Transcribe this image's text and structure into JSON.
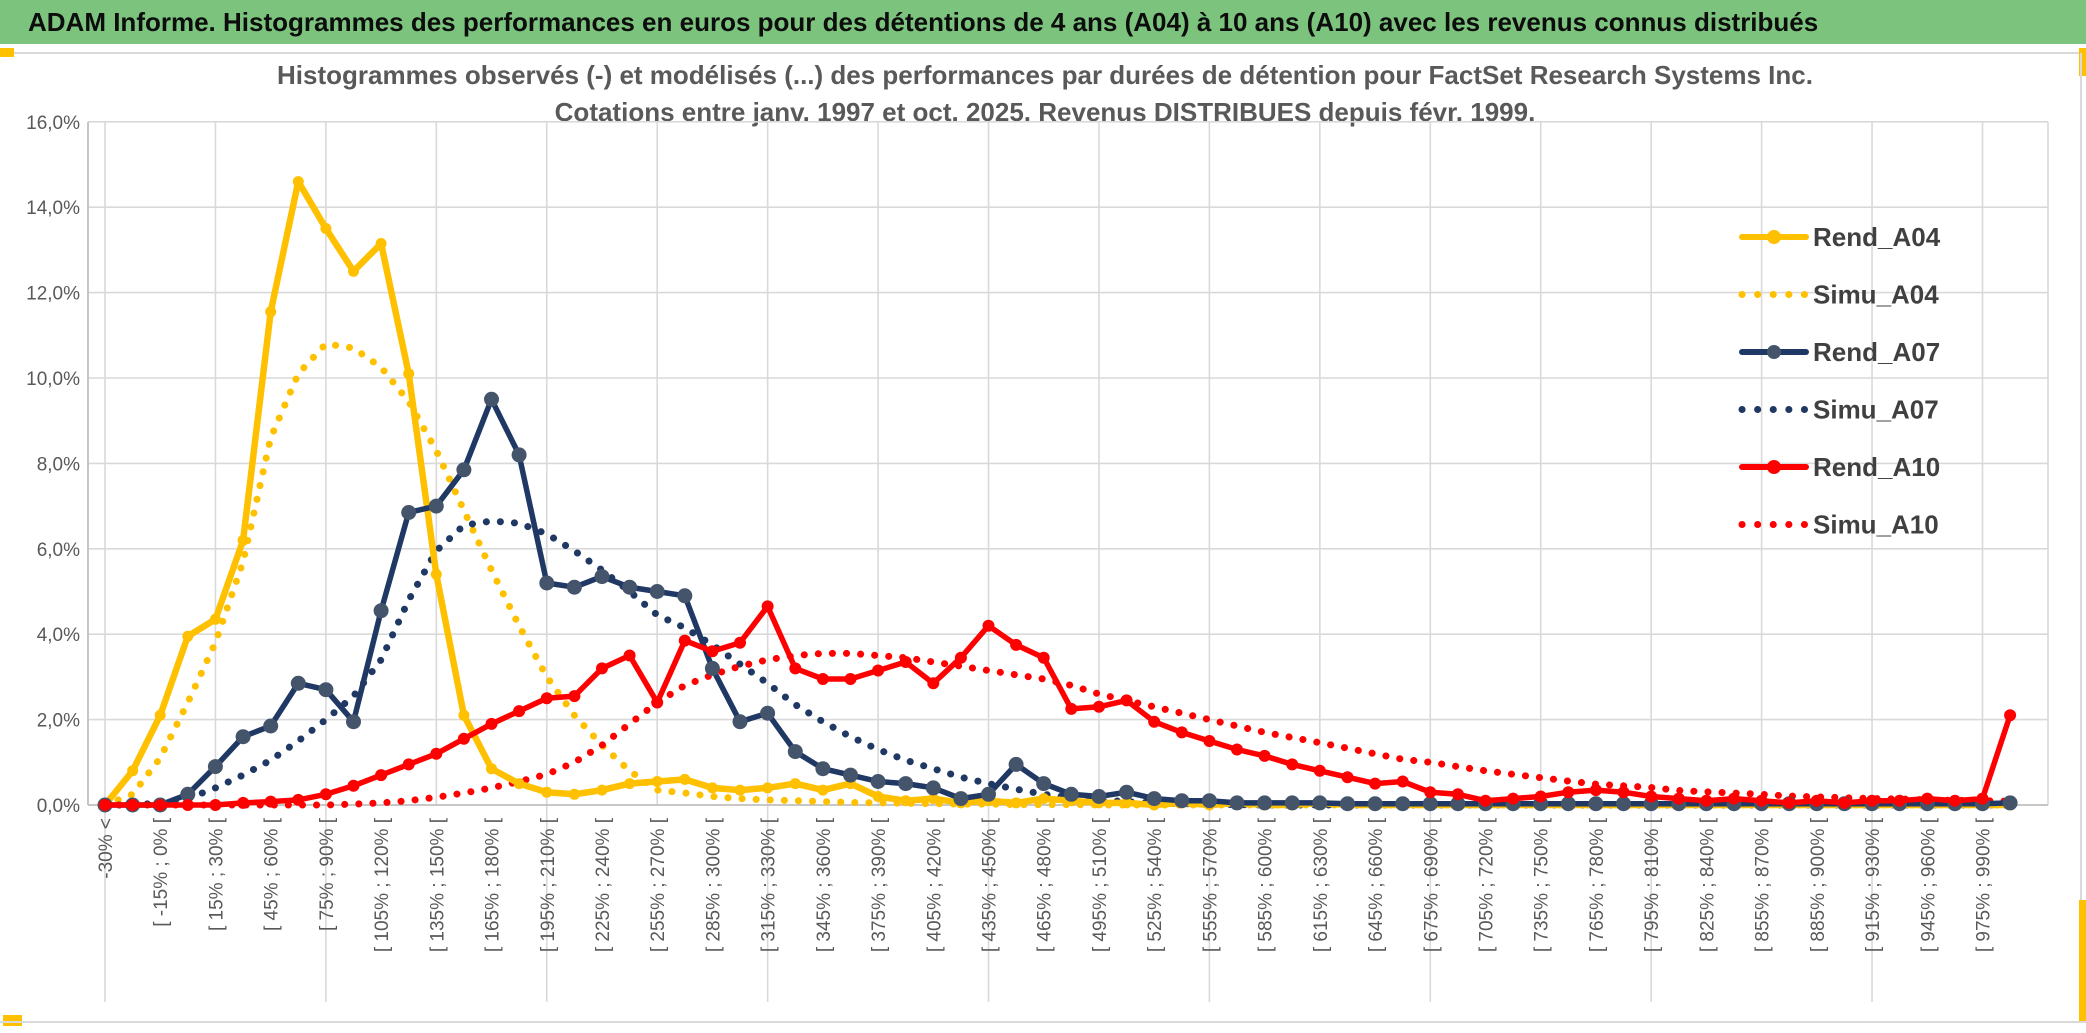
{
  "header": {
    "title": "ADAM Informe. Histogrammes des performances en euros pour des détentions de 4 ans (A04) à 10 ans (A10) avec les revenus connus distribués",
    "bg_color": "#7CC47D"
  },
  "chart": {
    "title_line1": "Histogrammes observés (-) et modélisés (...) des performances par durées de détention pour FactSet Research Systems Inc.",
    "title_line2": "Cotations entre janv. 1997 et oct. 2025. Revenus DISTRIBUES depuis févr. 1999."
  },
  "colors": {
    "gold": "#FFC000",
    "navy": "#1F3864",
    "navy_marker": "#44546A",
    "red": "#FF0000",
    "text_gray": "#595959",
    "legend_text": "#404040",
    "gridline": "#D9D9D9",
    "axis": "#BFBFBF",
    "header_green": "#7CC47D"
  },
  "chart_data": {
    "type": "line",
    "title": "Histogrammes observés (-) et modélisés (...) des performances par durées de détention pour FactSet Research Systems Inc.",
    "subtitle": "Cotations entre janv. 1997 et oct. 2025. Revenus DISTRIBUES depuis févr. 1999.",
    "xlabel": "",
    "ylabel": "",
    "ylim": [
      0,
      16
    ],
    "y_tick_step": 2,
    "grid": true,
    "legend_position": "right-overlay",
    "bins": 70,
    "label_every": 2,
    "y_axis_labels": [
      "0,0%",
      "2,0%",
      "4,0%",
      "6,0%",
      "8,0%",
      "10,0%",
      "12,0%",
      "14,0%",
      "16,0%"
    ],
    "categories": [
      "-30% <",
      "[ -15% ; 0% [",
      "[ 15% ; 30% [",
      "[ 45% ; 60% [",
      "[ 75% ; 90% [",
      "[ 105% ; 120% [",
      "[ 135% ; 150% [",
      "[ 165% ; 180% [",
      "[ 195% ; 210% [",
      "[ 225% ; 240% [",
      "[ 255% ; 270% [",
      "[ 285% ; 300% [",
      "[ 315% ; 330% [",
      "[ 345% ; 360% [",
      "[ 375% ; 390% [",
      "[ 405% ; 420% [",
      "[ 435% ; 450% [",
      "[ 465% ; 480% [",
      "[ 495% ; 510% [",
      "[ 525% ; 540% [",
      "[ 555% ; 570% [",
      "[ 585% ; 600% [",
      "[ 615% ; 630% [",
      "[ 645% ; 660% [",
      "[ 675% ; 690% [",
      "[ 705% ; 720% [",
      "[ 735% ; 750% [",
      "[ 765% ; 780% [",
      "[ 795% ; 810% [",
      "[ 825% ; 840% [",
      "[ 855% ; 870% [",
      "[ 885% ; 900% [",
      "[ 915% ; 930% [",
      "[ 945% ; 960% [",
      "[ 975% ; 990% ["
    ],
    "series": [
      {
        "name": "Simu_A04",
        "style": "dotted",
        "color": "#FFC000",
        "values": [
          0,
          0.25,
          1.1,
          2.4,
          3.8,
          5.7,
          8.6,
          10.1,
          10.8,
          10.7,
          10.25,
          9.45,
          8.3,
          6.9,
          5.5,
          4.2,
          3.0,
          2.1,
          1.4,
          0.8,
          0.35,
          0.28,
          0.2,
          0.15,
          0.12,
          0.1,
          0.08,
          0.06,
          0.05,
          0.04,
          0.03,
          0.02,
          0.02,
          0.01,
          0.01,
          0.01,
          0,
          0,
          0,
          0,
          0,
          0,
          0,
          0,
          0,
          0,
          0,
          0,
          0,
          0,
          0,
          0,
          0,
          0,
          0,
          0,
          0,
          0,
          0,
          0,
          0,
          0,
          0,
          0,
          0,
          0,
          0,
          0,
          0,
          0
        ]
      },
      {
        "name": "Simu_A07",
        "style": "dotted",
        "color": "#1F3864",
        "values": [
          0,
          0,
          0.05,
          0.15,
          0.4,
          0.7,
          1.05,
          1.5,
          2.0,
          2.55,
          3.4,
          4.8,
          5.95,
          6.55,
          6.65,
          6.6,
          6.35,
          5.95,
          5.5,
          5.0,
          4.45,
          4.15,
          3.75,
          3.3,
          2.85,
          2.35,
          1.95,
          1.6,
          1.3,
          1.05,
          0.85,
          0.65,
          0.5,
          0.37,
          0.25,
          0.17,
          0.12,
          0.08,
          0.05,
          0.03,
          0.02,
          0.01,
          0,
          0,
          0,
          0,
          0,
          0,
          0,
          0,
          0,
          0,
          0,
          0,
          0,
          0,
          0,
          0,
          0,
          0,
          0,
          0,
          0,
          0,
          0,
          0,
          0,
          0,
          0,
          0
        ]
      },
      {
        "name": "Simu_A10",
        "style": "dotted",
        "color": "#FF0000",
        "values": [
          0,
          0,
          0,
          0,
          0,
          0,
          0,
          0,
          0,
          0.02,
          0.05,
          0.1,
          0.18,
          0.28,
          0.4,
          0.55,
          0.72,
          1.0,
          1.4,
          1.9,
          2.4,
          2.8,
          3.05,
          3.25,
          3.4,
          3.5,
          3.55,
          3.55,
          3.5,
          3.45,
          3.35,
          3.25,
          3.15,
          3.05,
          2.95,
          2.8,
          2.6,
          2.45,
          2.3,
          2.15,
          2.0,
          1.85,
          1.7,
          1.58,
          1.46,
          1.33,
          1.2,
          1.07,
          1.0,
          0.9,
          0.8,
          0.72,
          0.64,
          0.56,
          0.49,
          0.45,
          0.41,
          0.34,
          0.31,
          0.28,
          0.25,
          0.21,
          0.19,
          0.17,
          0.15,
          0.14,
          0.12,
          0.11,
          0.1,
          0.09
        ]
      },
      {
        "name": "Rend_A04",
        "style": "solid",
        "color": "#FFC000",
        "width": 6.5,
        "marker_r": 5.5,
        "marker_color": "#FFC000",
        "values": [
          0,
          0.8,
          2.1,
          3.95,
          4.35,
          6.2,
          11.55,
          14.6,
          13.5,
          12.5,
          13.15,
          10.1,
          5.4,
          2.1,
          0.85,
          0.5,
          0.3,
          0.25,
          0.35,
          0.5,
          0.55,
          0.6,
          0.4,
          0.35,
          0.4,
          0.5,
          0.35,
          0.5,
          0.2,
          0.1,
          0.15,
          0.05,
          0.1,
          0.05,
          0.15,
          0.1,
          0.05,
          0.05,
          0,
          0.05,
          0,
          0.05,
          0,
          0,
          0.05,
          0,
          0,
          0,
          0,
          0,
          0,
          0,
          0,
          0,
          0,
          0,
          0,
          0,
          0,
          0,
          0,
          0,
          0,
          0,
          0,
          0,
          0,
          0,
          0,
          0
        ]
      },
      {
        "name": "Rend_A07",
        "style": "solid",
        "color": "#1F3864",
        "width": 5.5,
        "marker_r": 7.5,
        "marker_color": "#44546A",
        "values": [
          0,
          0,
          0,
          0.25,
          0.9,
          1.6,
          1.85,
          2.85,
          2.7,
          1.95,
          4.55,
          6.85,
          7.0,
          7.85,
          9.5,
          8.2,
          5.2,
          5.1,
          5.35,
          5.1,
          5.0,
          4.9,
          3.2,
          1.95,
          2.15,
          1.25,
          0.85,
          0.7,
          0.55,
          0.5,
          0.4,
          0.15,
          0.25,
          0.95,
          0.5,
          0.25,
          0.2,
          0.3,
          0.15,
          0.1,
          0.1,
          0.05,
          0.05,
          0.05,
          0.05,
          0.03,
          0.03,
          0.03,
          0.03,
          0.03,
          0.03,
          0.03,
          0.03,
          0.03,
          0.03,
          0.03,
          0.03,
          0.03,
          0.03,
          0.03,
          0.03,
          0.03,
          0.03,
          0.03,
          0.03,
          0.03,
          0.03,
          0.03,
          0.03,
          0.05
        ]
      },
      {
        "name": "Rend_A10",
        "style": "solid",
        "color": "#FF0000",
        "width": 5.5,
        "marker_r": 6,
        "marker_color": "#FF0000",
        "values": [
          0,
          0,
          0,
          0,
          0,
          0.05,
          0.08,
          0.12,
          0.25,
          0.45,
          0.7,
          0.95,
          1.2,
          1.55,
          1.9,
          2.2,
          2.5,
          2.55,
          3.2,
          3.5,
          2.4,
          3.85,
          3.6,
          3.8,
          4.65,
          3.2,
          2.95,
          2.95,
          3.15,
          3.35,
          2.85,
          3.45,
          4.2,
          3.75,
          3.45,
          2.25,
          2.3,
          2.45,
          1.95,
          1.7,
          1.5,
          1.3,
          1.15,
          0.95,
          0.8,
          0.65,
          0.5,
          0.55,
          0.3,
          0.25,
          0.1,
          0.15,
          0.2,
          0.3,
          0.35,
          0.3,
          0.2,
          0.15,
          0.1,
          0.15,
          0.1,
          0.05,
          0.1,
          0.05,
          0.1,
          0.1,
          0.15,
          0.1,
          0.15,
          2.1
        ]
      }
    ],
    "legend": [
      {
        "label": "Rend_A04",
        "style": "solid",
        "color": "#FFC000",
        "marker_color": "#FFC000"
      },
      {
        "label": "Simu_A04",
        "style": "dotted",
        "color": "#FFC000"
      },
      {
        "label": "Rend_A07",
        "style": "solid",
        "color": "#1F3864",
        "marker_color": "#44546A"
      },
      {
        "label": "Simu_A07",
        "style": "dotted",
        "color": "#1F3864"
      },
      {
        "label": "Rend_A10",
        "style": "solid",
        "color": "#FF0000",
        "marker_color": "#FF0000"
      },
      {
        "label": "Simu_A10",
        "style": "dotted",
        "color": "#FF0000"
      }
    ]
  }
}
